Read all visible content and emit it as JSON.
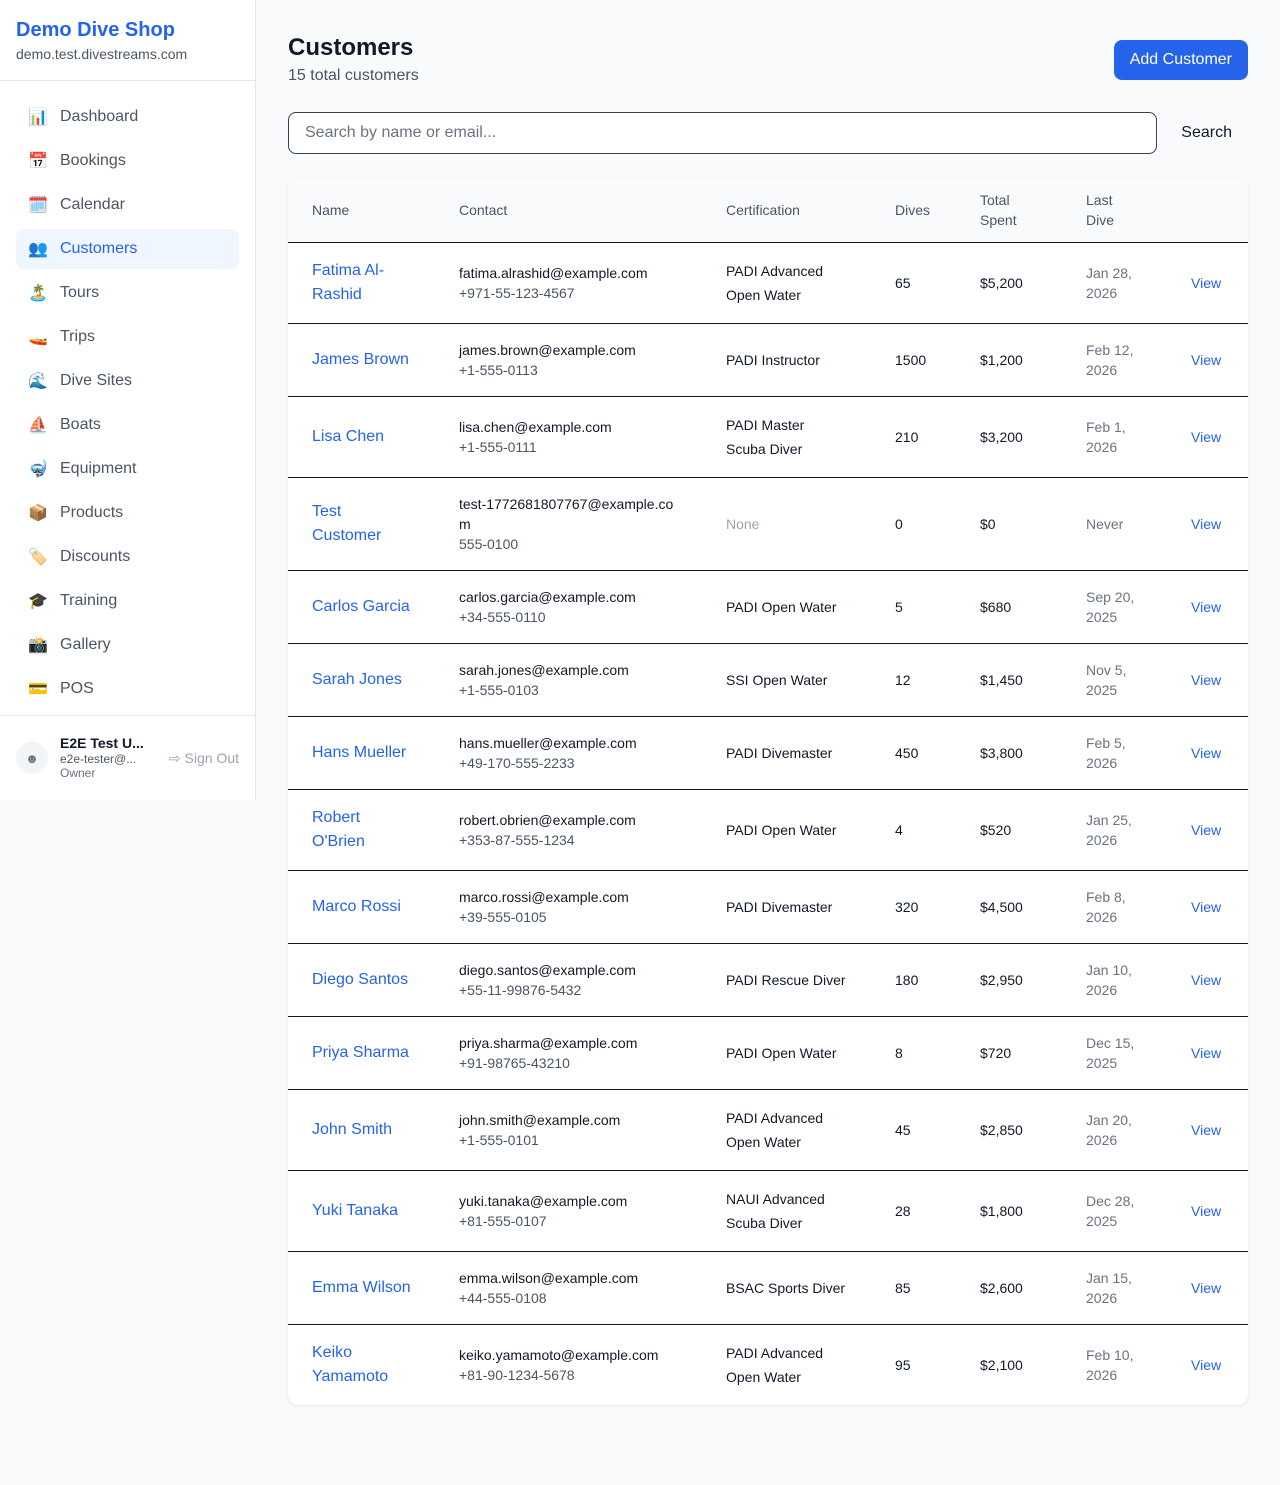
{
  "sidebar": {
    "brand": "Demo Dive Shop",
    "domain": "demo.test.divestreams.com",
    "items": [
      {
        "label": "Dashboard",
        "icon": "📊"
      },
      {
        "label": "Bookings",
        "icon": "📅"
      },
      {
        "label": "Calendar",
        "icon": "🗓️"
      },
      {
        "label": "Customers",
        "icon": "👥",
        "active": true
      },
      {
        "label": "Tours",
        "icon": "🏝️"
      },
      {
        "label": "Trips",
        "icon": "🚤"
      },
      {
        "label": "Dive Sites",
        "icon": "🌊"
      },
      {
        "label": "Boats",
        "icon": "⛵"
      },
      {
        "label": "Equipment",
        "icon": "🤿"
      },
      {
        "label": "Products",
        "icon": "📦"
      },
      {
        "label": "Discounts",
        "icon": "🏷️"
      },
      {
        "label": "Training",
        "icon": "🎓"
      },
      {
        "label": "Gallery",
        "icon": "📸"
      },
      {
        "label": "POS",
        "icon": "💳"
      }
    ],
    "user": {
      "name": "E2E Test U...",
      "email": "e2e-tester@...",
      "role": "Owner",
      "sign_out": "Sign Out"
    }
  },
  "header": {
    "title": "Customers",
    "subtitle": "15 total customers",
    "add_button": "Add Customer"
  },
  "search": {
    "placeholder": "Search by name or email...",
    "value": "",
    "button": "Search"
  },
  "table": {
    "columns": [
      "Name",
      "Contact",
      "Certification",
      "Dives",
      "Total Spent",
      "Last Dive",
      ""
    ],
    "rows": [
      {
        "name": "Fatima Al-Rashid",
        "email": "fatima.alrashid@example.com",
        "phone": "+971-55-123-4567",
        "cert": "PADI Advanced Open Water",
        "dives": "65",
        "spent": "$5,200",
        "last": "Jan 28, 2026",
        "action": "View"
      },
      {
        "name": "James Brown",
        "email": "james.brown@example.com",
        "phone": "+1-555-0113",
        "cert": "PADI Instructor",
        "dives": "1500",
        "spent": "$1,200",
        "last": "Feb 12, 2026",
        "action": "View"
      },
      {
        "name": "Lisa Chen",
        "email": "lisa.chen@example.com",
        "phone": "+1-555-0111",
        "cert": "PADI Master Scuba Diver",
        "dives": "210",
        "spent": "$3,200",
        "last": "Feb 1, 2026",
        "action": "View"
      },
      {
        "name": "Test Customer",
        "email": "test-1772681807767@example.com",
        "phone": "555-0100",
        "cert": "None",
        "dives": "0",
        "spent": "$0",
        "last": "Never",
        "action": "View"
      },
      {
        "name": "Carlos Garcia",
        "email": "carlos.garcia@example.com",
        "phone": "+34-555-0110",
        "cert": "PADI Open Water",
        "dives": "5",
        "spent": "$680",
        "last": "Sep 20, 2025",
        "action": "View"
      },
      {
        "name": "Sarah Jones",
        "email": "sarah.jones@example.com",
        "phone": "+1-555-0103",
        "cert": "SSI Open Water",
        "dives": "12",
        "spent": "$1,450",
        "last": "Nov 5, 2025",
        "action": "View"
      },
      {
        "name": "Hans Mueller",
        "email": "hans.mueller@example.com",
        "phone": "+49-170-555-2233",
        "cert": "PADI Divemaster",
        "dives": "450",
        "spent": "$3,800",
        "last": "Feb 5, 2026",
        "action": "View"
      },
      {
        "name": "Robert O'Brien",
        "email": "robert.obrien@example.com",
        "phone": "+353-87-555-1234",
        "cert": "PADI Open Water",
        "dives": "4",
        "spent": "$520",
        "last": "Jan 25, 2026",
        "action": "View"
      },
      {
        "name": "Marco Rossi",
        "email": "marco.rossi@example.com",
        "phone": "+39-555-0105",
        "cert": "PADI Divemaster",
        "dives": "320",
        "spent": "$4,500",
        "last": "Feb 8, 2026",
        "action": "View"
      },
      {
        "name": "Diego Santos",
        "email": "diego.santos@example.com",
        "phone": "+55-11-99876-5432",
        "cert": "PADI Rescue Diver",
        "dives": "180",
        "spent": "$2,950",
        "last": "Jan 10, 2026",
        "action": "View"
      },
      {
        "name": "Priya Sharma",
        "email": "priya.sharma@example.com",
        "phone": "+91-98765-43210",
        "cert": "PADI Open Water",
        "dives": "8",
        "spent": "$720",
        "last": "Dec 15, 2025",
        "action": "View"
      },
      {
        "name": "John Smith",
        "email": "john.smith@example.com",
        "phone": "+1-555-0101",
        "cert": "PADI Advanced Open Water",
        "dives": "45",
        "spent": "$2,850",
        "last": "Jan 20, 2026",
        "action": "View"
      },
      {
        "name": "Yuki Tanaka",
        "email": "yuki.tanaka@example.com",
        "phone": "+81-555-0107",
        "cert": "NAUI Advanced Scuba Diver",
        "dives": "28",
        "spent": "$1,800",
        "last": "Dec 28, 2025",
        "action": "View"
      },
      {
        "name": "Emma Wilson",
        "email": "emma.wilson@example.com",
        "phone": "+44-555-0108",
        "cert": "BSAC Sports Diver",
        "dives": "85",
        "spent": "$2,600",
        "last": "Jan 15, 2026",
        "action": "View"
      },
      {
        "name": "Keiko Yamamoto",
        "email": "keiko.yamamoto@example.com",
        "phone": "+81-90-1234-5678",
        "cert": "PADI Advanced Open Water",
        "dives": "95",
        "spent": "$2,100",
        "last": "Feb 10, 2026",
        "action": "View"
      }
    ]
  }
}
